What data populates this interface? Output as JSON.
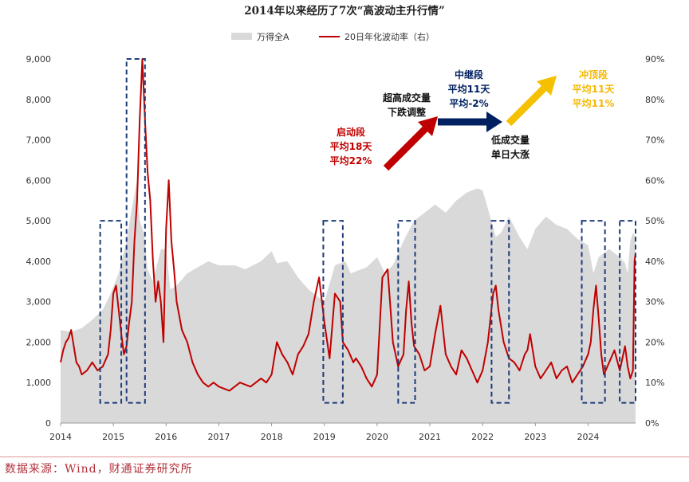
{
  "chart_data": {
    "type": "area+line",
    "title": "2014年以来经历了7次“高波动主升行情”",
    "legend": [
      {
        "name": "万得全A",
        "color": "#d9d9d9",
        "kind": "area"
      },
      {
        "name": "20日年化波动率（右）",
        "color": "#c00000",
        "kind": "line"
      }
    ],
    "x_ticks": [
      "2014",
      "2015",
      "2016",
      "2017",
      "2018",
      "2019",
      "2020",
      "2021",
      "2022",
      "2023",
      "2024"
    ],
    "x_range": [
      2014.0,
      2024.9
    ],
    "y_left": {
      "range": [
        0,
        9000
      ],
      "ticks": [
        "0",
        "1,000",
        "2,000",
        "3,000",
        "4,000",
        "5,000",
        "6,000",
        "7,000",
        "8,000",
        "9,000"
      ]
    },
    "y_right": {
      "range": [
        0,
        90
      ],
      "ticks": [
        "0%",
        "10%",
        "20%",
        "30%",
        "40%",
        "50%",
        "60%",
        "70%",
        "80%",
        "90%"
      ]
    },
    "series": [
      {
        "name": "万得全A",
        "axis": "left",
        "points": [
          [
            2014.0,
            2300
          ],
          [
            2014.2,
            2250
          ],
          [
            2014.4,
            2350
          ],
          [
            2014.6,
            2550
          ],
          [
            2014.8,
            2800
          ],
          [
            2014.95,
            3200
          ],
          [
            2015.1,
            3700
          ],
          [
            2015.25,
            4500
          ],
          [
            2015.35,
            5300
          ],
          [
            2015.45,
            6000
          ],
          [
            2015.5,
            5000
          ],
          [
            2015.58,
            4700
          ],
          [
            2015.65,
            3800
          ],
          [
            2015.75,
            3500
          ],
          [
            2015.9,
            4300
          ],
          [
            2016.0,
            4300
          ],
          [
            2016.08,
            3300
          ],
          [
            2016.2,
            3400
          ],
          [
            2016.4,
            3700
          ],
          [
            2016.6,
            3850
          ],
          [
            2016.8,
            4000
          ],
          [
            2017.0,
            3900
          ],
          [
            2017.3,
            3900
          ],
          [
            2017.5,
            3800
          ],
          [
            2017.8,
            4000
          ],
          [
            2018.0,
            4250
          ],
          [
            2018.1,
            3950
          ],
          [
            2018.3,
            4000
          ],
          [
            2018.5,
            3600
          ],
          [
            2018.7,
            3300
          ],
          [
            2018.9,
            3100
          ],
          [
            2019.0,
            3000
          ],
          [
            2019.2,
            3900
          ],
          [
            2019.4,
            4000
          ],
          [
            2019.5,
            3700
          ],
          [
            2019.8,
            3850
          ],
          [
            2020.0,
            4100
          ],
          [
            2020.15,
            3700
          ],
          [
            2020.3,
            3900
          ],
          [
            2020.5,
            4500
          ],
          [
            2020.7,
            5000
          ],
          [
            2020.9,
            5200
          ],
          [
            2021.1,
            5400
          ],
          [
            2021.3,
            5200
          ],
          [
            2021.5,
            5500
          ],
          [
            2021.7,
            5700
          ],
          [
            2021.9,
            5800
          ],
          [
            2022.0,
            5750
          ],
          [
            2022.1,
            5300
          ],
          [
            2022.25,
            4600
          ],
          [
            2022.35,
            4700
          ],
          [
            2022.5,
            5100
          ],
          [
            2022.7,
            4600
          ],
          [
            2022.85,
            4300
          ],
          [
            2023.0,
            4800
          ],
          [
            2023.2,
            5100
          ],
          [
            2023.4,
            4900
          ],
          [
            2023.6,
            4800
          ],
          [
            2023.8,
            4550
          ],
          [
            2024.0,
            4400
          ],
          [
            2024.1,
            3700
          ],
          [
            2024.2,
            4100
          ],
          [
            2024.4,
            4300
          ],
          [
            2024.6,
            4100
          ],
          [
            2024.7,
            3950
          ],
          [
            2024.75,
            3700
          ],
          [
            2024.8,
            4500
          ],
          [
            2024.85,
            4700
          ],
          [
            2024.9,
            4600
          ]
        ]
      },
      {
        "name": "20日年化波动率（右）",
        "axis": "right",
        "points": [
          [
            2014.0,
            15
          ],
          [
            2014.05,
            18
          ],
          [
            2014.1,
            20
          ],
          [
            2014.15,
            21
          ],
          [
            2014.2,
            23
          ],
          [
            2014.25,
            19
          ],
          [
            2014.3,
            15
          ],
          [
            2014.35,
            14
          ],
          [
            2014.4,
            12
          ],
          [
            2014.5,
            13
          ],
          [
            2014.6,
            15
          ],
          [
            2014.7,
            13
          ],
          [
            2014.8,
            14
          ],
          [
            2014.9,
            17
          ],
          [
            2014.95,
            23
          ],
          [
            2015.0,
            32
          ],
          [
            2015.05,
            34
          ],
          [
            2015.1,
            28
          ],
          [
            2015.15,
            22
          ],
          [
            2015.2,
            17
          ],
          [
            2015.25,
            19
          ],
          [
            2015.3,
            25
          ],
          [
            2015.35,
            30
          ],
          [
            2015.4,
            45
          ],
          [
            2015.45,
            55
          ],
          [
            2015.5,
            75
          ],
          [
            2015.55,
            90
          ],
          [
            2015.6,
            75
          ],
          [
            2015.65,
            62
          ],
          [
            2015.7,
            55
          ],
          [
            2015.75,
            40
          ],
          [
            2015.8,
            30
          ],
          [
            2015.85,
            35
          ],
          [
            2015.9,
            30
          ],
          [
            2015.95,
            20
          ],
          [
            2016.0,
            48
          ],
          [
            2016.05,
            60
          ],
          [
            2016.1,
            45
          ],
          [
            2016.15,
            38
          ],
          [
            2016.2,
            30
          ],
          [
            2016.3,
            23
          ],
          [
            2016.4,
            20
          ],
          [
            2016.5,
            15
          ],
          [
            2016.6,
            12
          ],
          [
            2016.7,
            10
          ],
          [
            2016.8,
            9
          ],
          [
            2016.9,
            10
          ],
          [
            2017.0,
            9
          ],
          [
            2017.2,
            8
          ],
          [
            2017.4,
            10
          ],
          [
            2017.6,
            9
          ],
          [
            2017.8,
            11
          ],
          [
            2017.9,
            10
          ],
          [
            2018.0,
            12
          ],
          [
            2018.1,
            20
          ],
          [
            2018.2,
            17
          ],
          [
            2018.3,
            15
          ],
          [
            2018.4,
            12
          ],
          [
            2018.5,
            17
          ],
          [
            2018.6,
            19
          ],
          [
            2018.7,
            22
          ],
          [
            2018.8,
            30
          ],
          [
            2018.9,
            36
          ],
          [
            2019.0,
            25
          ],
          [
            2019.1,
            16
          ],
          [
            2019.2,
            32
          ],
          [
            2019.3,
            30
          ],
          [
            2019.35,
            20
          ],
          [
            2019.45,
            18
          ],
          [
            2019.55,
            15
          ],
          [
            2019.6,
            16
          ],
          [
            2019.7,
            14
          ],
          [
            2019.8,
            11
          ],
          [
            2019.9,
            9
          ],
          [
            2020.0,
            12
          ],
          [
            2020.1,
            36
          ],
          [
            2020.2,
            38
          ],
          [
            2020.3,
            20
          ],
          [
            2020.4,
            14
          ],
          [
            2020.5,
            17
          ],
          [
            2020.55,
            28
          ],
          [
            2020.6,
            35
          ],
          [
            2020.65,
            25
          ],
          [
            2020.7,
            19
          ],
          [
            2020.8,
            17
          ],
          [
            2020.9,
            13
          ],
          [
            2021.0,
            14
          ],
          [
            2021.1,
            22
          ],
          [
            2021.2,
            29
          ],
          [
            2021.3,
            17
          ],
          [
            2021.4,
            14
          ],
          [
            2021.5,
            12
          ],
          [
            2021.6,
            18
          ],
          [
            2021.7,
            16
          ],
          [
            2021.8,
            13
          ],
          [
            2021.9,
            10
          ],
          [
            2022.0,
            13
          ],
          [
            2022.1,
            20
          ],
          [
            2022.2,
            32
          ],
          [
            2022.25,
            34
          ],
          [
            2022.3,
            28
          ],
          [
            2022.4,
            20
          ],
          [
            2022.5,
            16
          ],
          [
            2022.6,
            15
          ],
          [
            2022.7,
            13
          ],
          [
            2022.8,
            17
          ],
          [
            2022.85,
            18
          ],
          [
            2022.9,
            22
          ],
          [
            2023.0,
            14
          ],
          [
            2023.1,
            11
          ],
          [
            2023.2,
            13
          ],
          [
            2023.3,
            15
          ],
          [
            2023.4,
            11
          ],
          [
            2023.5,
            13
          ],
          [
            2023.6,
            14
          ],
          [
            2023.7,
            10
          ],
          [
            2023.8,
            12
          ],
          [
            2023.9,
            14
          ],
          [
            2024.0,
            17
          ],
          [
            2024.05,
            20
          ],
          [
            2024.1,
            28
          ],
          [
            2024.15,
            34
          ],
          [
            2024.2,
            26
          ],
          [
            2024.25,
            17
          ],
          [
            2024.3,
            12
          ],
          [
            2024.4,
            15
          ],
          [
            2024.5,
            18
          ],
          [
            2024.6,
            13
          ],
          [
            2024.7,
            19
          ],
          [
            2024.75,
            14
          ],
          [
            2024.8,
            11
          ],
          [
            2024.85,
            13
          ],
          [
            2024.88,
            40
          ],
          [
            2024.9,
            42
          ]
        ]
      }
    ],
    "highlight_periods": [
      [
        2014.75,
        2015.15
      ],
      [
        2015.25,
        2015.6
      ],
      [
        2018.98,
        2019.35
      ],
      [
        2020.4,
        2020.72
      ],
      [
        2022.17,
        2022.5
      ],
      [
        2023.88,
        2024.32
      ],
      [
        2024.6,
        2024.9
      ]
    ],
    "annotations": {
      "stage1": {
        "lines": [
          "启动段",
          "平均18天",
          "平均22%"
        ],
        "color": "#c00000"
      },
      "adjust": {
        "lines": [
          "超高成交量",
          "下跌调整"
        ],
        "color": "#111111"
      },
      "stage2": {
        "lines": [
          "中继段",
          "平均11天",
          "平均-2%"
        ],
        "color": "#002060"
      },
      "lowvol": {
        "lines": [
          "低成交量",
          "单日大涨"
        ],
        "color": "#111111"
      },
      "stage3": {
        "lines": [
          "冲顶段",
          "平均11天",
          "平均11%"
        ],
        "color": "#f5b800"
      }
    },
    "source": "数据来源：Wind，财通证券研究所"
  }
}
